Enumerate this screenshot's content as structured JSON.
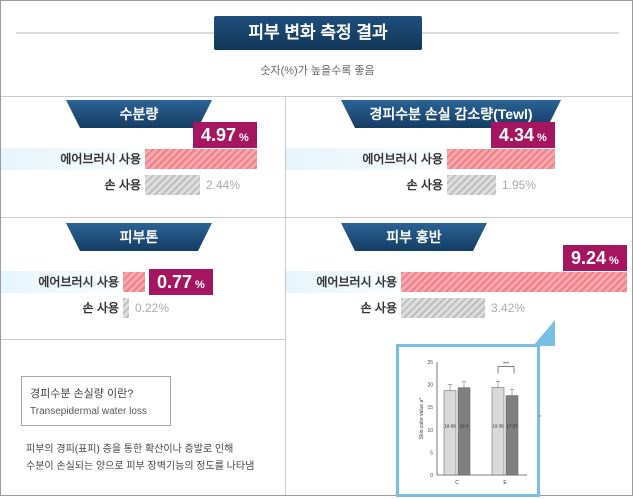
{
  "header": {
    "title": "피부 변화 측정 결과",
    "subtitle": "숫자(%)가 높을수록 좋음"
  },
  "colors": {
    "ribbon": "#1e4e7c",
    "badge": "#a51560",
    "bar_pink": "#f07e86",
    "bar_gray": "#c8c8c8",
    "inset_border": "#79bfe3"
  },
  "chart_data": [
    {
      "type": "bar",
      "title": "수분량",
      "categories": [
        "에어브러시 사용",
        "손 사용"
      ],
      "values": [
        4.97,
        2.44
      ],
      "value_labels": [
        "4.97",
        "2.44%"
      ],
      "unit": "%"
    },
    {
      "type": "bar",
      "title": "경피수분 손실 감소량(Tewl)",
      "categories": [
        "에어브러시 사용",
        "손 사용"
      ],
      "values": [
        4.34,
        1.95
      ],
      "value_labels": [
        "4.34",
        "1.95%"
      ],
      "unit": "%"
    },
    {
      "type": "bar",
      "title": "피부톤",
      "categories": [
        "에어브러시 사용",
        "손 사용"
      ],
      "values": [
        0.77,
        0.22
      ],
      "value_labels": [
        "0.77",
        "0.22%"
      ],
      "unit": "%"
    },
    {
      "type": "bar",
      "title": "피부 홍반",
      "categories": [
        "에어브러시 사용",
        "손 사용"
      ],
      "values": [
        9.24,
        3.42
      ],
      "value_labels": [
        "9.24",
        "3.42%"
      ],
      "unit": "%"
    },
    {
      "type": "bar",
      "ylabel": "Skin color value a*",
      "ylim": [
        0,
        25
      ],
      "yticks": [
        "0",
        "5",
        "10",
        "15",
        "20",
        "25"
      ],
      "categories": [
        "C",
        "E"
      ],
      "series": [
        {
          "values": [
            18.66,
            19.36
          ],
          "value_labels": [
            "18.66",
            "19.36"
          ]
        },
        {
          "values": [
            19.3,
            17.57
          ],
          "value_labels": [
            "19.3",
            "17.57"
          ]
        }
      ],
      "annotation": "***"
    }
  ],
  "info": {
    "box_title": "경피수분 손실량 이란?",
    "box_subtitle": "Transepidermal water loss",
    "description_line1": "피부의 경피(표피) 층을 통한 확산이나 증발로 인해",
    "description_line2": "수분이 손실되는 양으로 피부 장벽기능의 정도를 나타냄"
  }
}
